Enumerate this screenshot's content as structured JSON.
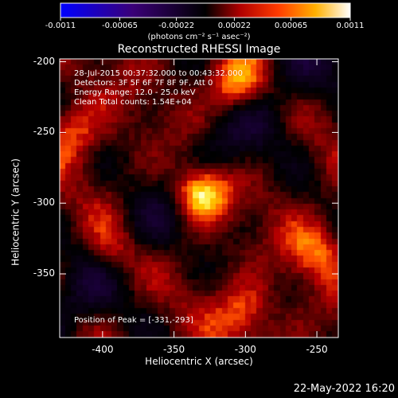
{
  "colorbar": {
    "ticks": [
      "-0.0011",
      "-0.00065",
      "-0.00022",
      "0.00022",
      "0.00065",
      "0.0011"
    ],
    "tick_values": [
      -0.0011,
      -0.00065,
      -0.00022,
      0.00022,
      0.00065,
      0.0011
    ],
    "units": "(photons cm⁻² s⁻¹ asec⁻²)"
  },
  "title": "Reconstructed RHESSI Image",
  "annotations": {
    "time_range": "28-Jul-2015 00:37:32.000 to 00:43:32.000",
    "detectors": "Detectors: 3F 5F 6F 7F 8F 9F, Att 0",
    "energy_range": "Energy Range: 12.0 - 25.0 keV",
    "algorithm_counts": "Clean    Total counts: 1.54E+04",
    "peak_position": "Position of Peak = [-331,-293]"
  },
  "axes": {
    "xlabel": "Heliocentric X (arcsec)",
    "ylabel": "Heliocentric Y (arcsec)",
    "x_ticks": [
      "-400",
      "-350",
      "-300",
      "-250"
    ],
    "x_tick_values": [
      -400,
      -350,
      -300,
      -250
    ],
    "y_ticks": [
      "-200",
      "-250",
      "-300",
      "-350"
    ],
    "y_tick_values": [
      -200,
      -250,
      -300,
      -350
    ],
    "xlim": [
      -430,
      -235
    ],
    "ylim": [
      -395,
      -198
    ]
  },
  "sources": [
    {
      "x": -331,
      "y": -293,
      "intensity": 1.0
    },
    {
      "x": -305,
      "y": -218,
      "intensity": 0.6
    },
    {
      "x": -392,
      "y": -335,
      "intensity": 0.45
    },
    {
      "x": -300,
      "y": -378,
      "intensity": 0.4
    },
    {
      "x": -250,
      "y": -335,
      "intensity": 0.4
    },
    {
      "x": -420,
      "y": -250,
      "intensity": 0.4
    }
  ],
  "footer_date": "22-May-2022 16:20"
}
